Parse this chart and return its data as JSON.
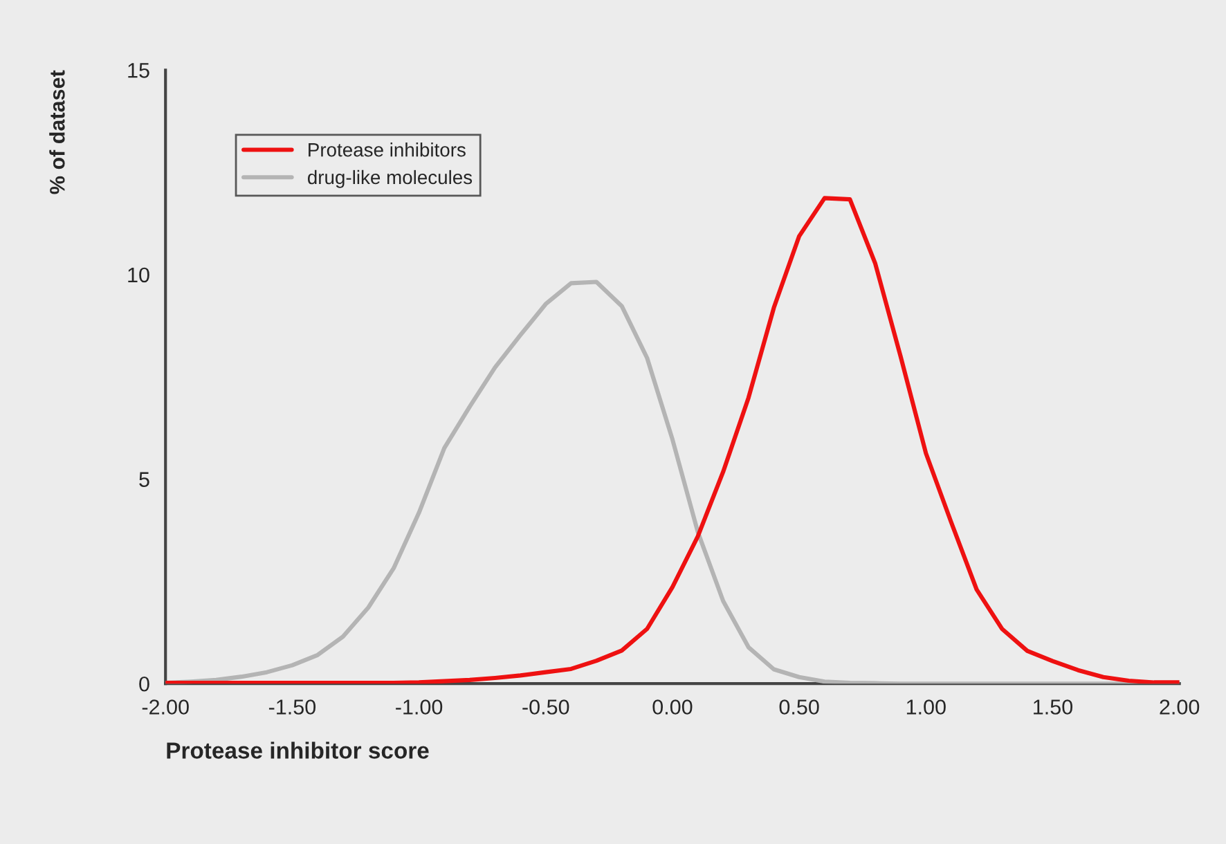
{
  "chart_data": {
    "type": "line",
    "xlabel": "Protease inhibitor score",
    "ylabel": "% of dataset",
    "x": [
      -2.0,
      -1.9,
      -1.8,
      -1.7,
      -1.6,
      -1.5,
      -1.4,
      -1.3,
      -1.2,
      -1.1,
      -1.0,
      -0.9,
      -0.8,
      -0.7,
      -0.6,
      -0.5,
      -0.4,
      -0.3,
      -0.2,
      -0.1,
      0.0,
      0.1,
      0.2,
      0.3,
      0.4,
      0.5,
      0.6,
      0.7,
      0.8,
      0.9,
      1.0,
      1.1,
      1.2,
      1.3,
      1.4,
      1.5,
      1.6,
      1.7,
      1.8,
      1.9,
      2.0
    ],
    "series": [
      {
        "name": "Protease inhibitors",
        "color": "#ee1111",
        "values": [
          0.02,
          0.02,
          0.02,
          0.02,
          0.02,
          0.02,
          0.02,
          0.02,
          0.02,
          0.02,
          0.03,
          0.06,
          0.09,
          0.14,
          0.2,
          0.28,
          0.36,
          0.56,
          0.81,
          1.34,
          2.36,
          3.6,
          5.18,
          6.99,
          9.19,
          10.94,
          11.87,
          11.84,
          10.27,
          8.0,
          5.63,
          3.94,
          2.3,
          1.34,
          0.8,
          0.55,
          0.33,
          0.16,
          0.07,
          0.03,
          0.03
        ]
      },
      {
        "name": "drug-like molecules",
        "color": "#b4b4b4",
        "values": [
          0.02,
          0.05,
          0.09,
          0.17,
          0.28,
          0.45,
          0.7,
          1.15,
          1.86,
          2.82,
          4.18,
          5.76,
          6.77,
          7.73,
          8.52,
          9.28,
          9.79,
          9.82,
          9.23,
          7.96,
          5.97,
          3.71,
          2.02,
          0.89,
          0.35,
          0.16,
          0.05,
          0.02,
          0.01,
          0,
          0,
          0,
          0,
          0,
          0,
          0,
          0,
          0,
          0,
          0,
          0
        ]
      }
    ],
    "xlim": [
      -2.0,
      2.0
    ],
    "ylim": [
      0,
      15
    ],
    "xticks": [
      {
        "value": -2.0,
        "label": "-2.00"
      },
      {
        "value": -1.5,
        "label": "-1.50"
      },
      {
        "value": -1.0,
        "label": "-1.00"
      },
      {
        "value": -0.5,
        "label": "-0.50"
      },
      {
        "value": 0.0,
        "label": "0.00"
      },
      {
        "value": 0.5,
        "label": "0.50"
      },
      {
        "value": 1.0,
        "label": "1.00"
      },
      {
        "value": 1.5,
        "label": "1.50"
      },
      {
        "value": 2.0,
        "label": "2.00"
      }
    ],
    "yticks": [
      0,
      5,
      10,
      15
    ],
    "grid": false,
    "legend": "top left",
    "marker": "none",
    "line_style": "solid"
  }
}
